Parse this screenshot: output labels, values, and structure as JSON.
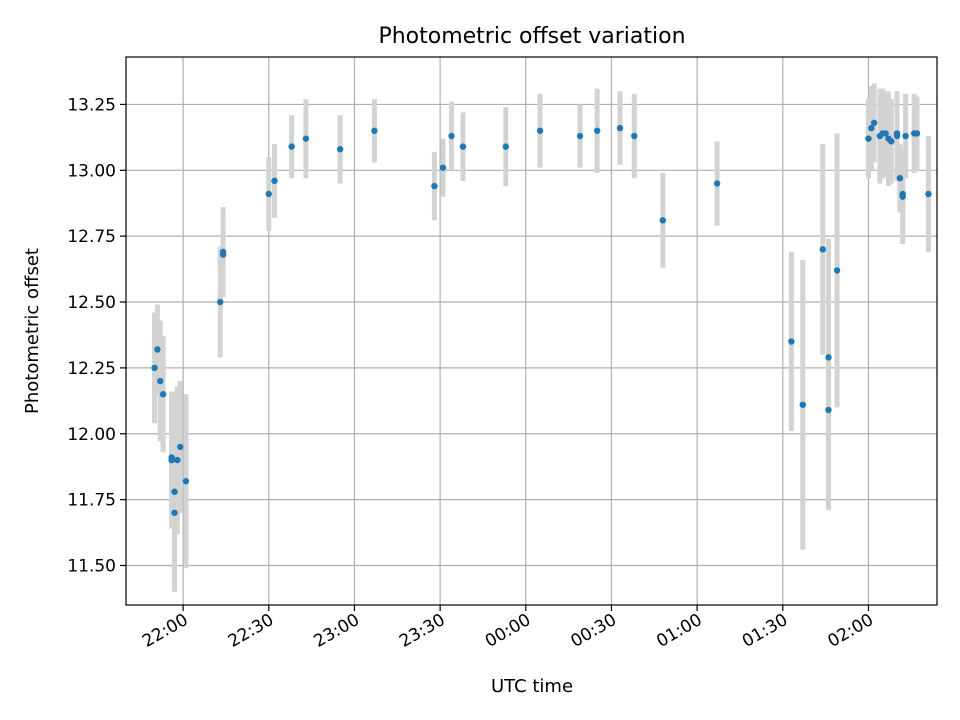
{
  "chart_data": {
    "type": "scatter",
    "title": "Photometric offset variation",
    "xlabel": "UTC time",
    "ylabel": "Photometric offset",
    "x_tick_labels": [
      "22:00",
      "22:30",
      "23:00",
      "23:30",
      "00:00",
      "00:30",
      "01:00",
      "01:30",
      "02:00"
    ],
    "y_tick_labels": [
      "11.50",
      "11.75",
      "12.00",
      "12.25",
      "12.50",
      "12.75",
      "13.00",
      "13.25"
    ],
    "x_tick_values": [
      "22:00",
      "22:30",
      "23:00",
      "23:30",
      "00:00",
      "00:30",
      "01:00",
      "01:30",
      "02:00"
    ],
    "y_ticks": [
      11.5,
      11.75,
      12.0,
      12.25,
      12.5,
      12.75,
      13.0,
      13.25
    ],
    "xlim": [
      "21:40",
      "02:24"
    ],
    "ylim": [
      11.35,
      13.43
    ],
    "grid": true,
    "series": [
      {
        "x": [
          "21:50",
          "21:51",
          "21:52",
          "21:53",
          "21:56",
          "21:56",
          "21:57",
          "21:57",
          "21:58",
          "21:59",
          "22:01",
          "22:13",
          "22:14",
          "22:14",
          "22:30",
          "22:32",
          "22:38",
          "22:43",
          "22:55",
          "23:07",
          "23:28",
          "23:31",
          "23:34",
          "23:38",
          "23:53",
          "24:05",
          "24:19",
          "24:25",
          "24:33",
          "24:38",
          "24:48",
          "25:07",
          "25:33",
          "25:37",
          "25:44",
          "25:46",
          "25:46",
          "25:49",
          "26:00",
          "26:01",
          "26:02",
          "26:04",
          "26:05",
          "26:06",
          "26:07",
          "26:08",
          "26:10",
          "26:10",
          "26:11",
          "26:12",
          "26:12",
          "26:13",
          "26:16",
          "26:17",
          "26:21"
        ],
        "y": [
          12.25,
          12.32,
          12.2,
          12.15,
          11.91,
          11.9,
          11.78,
          11.7,
          11.9,
          11.95,
          11.82,
          12.5,
          12.68,
          12.69,
          12.91,
          12.96,
          13.09,
          13.12,
          13.08,
          13.15,
          12.94,
          13.01,
          13.13,
          13.09,
          13.09,
          13.15,
          13.13,
          13.15,
          13.16,
          13.13,
          12.81,
          12.95,
          12.35,
          12.11,
          12.7,
          12.29,
          12.09,
          12.62,
          13.12,
          13.16,
          13.18,
          13.13,
          13.14,
          13.14,
          13.12,
          13.11,
          13.14,
          13.13,
          12.97,
          12.9,
          12.91,
          13.13,
          13.14,
          13.14,
          12.91
        ],
        "yerr": [
          0.21,
          0.17,
          0.23,
          0.22,
          0.25,
          0.26,
          0.38,
          0.27,
          0.28,
          0.25,
          0.33,
          0.21,
          0.16,
          0.17,
          0.14,
          0.14,
          0.12,
          0.15,
          0.13,
          0.12,
          0.13,
          0.11,
          0.13,
          0.13,
          0.15,
          0.14,
          0.12,
          0.16,
          0.14,
          0.16,
          0.18,
          0.16,
          0.34,
          0.55,
          0.4,
          0.45,
          0.38,
          0.52,
          0.15,
          0.16,
          0.15,
          0.18,
          0.17,
          0.16,
          0.18,
          0.16,
          0.15,
          0.17,
          0.13,
          0.18,
          0.15,
          0.16,
          0.15,
          0.14,
          0.22
        ]
      }
    ]
  }
}
